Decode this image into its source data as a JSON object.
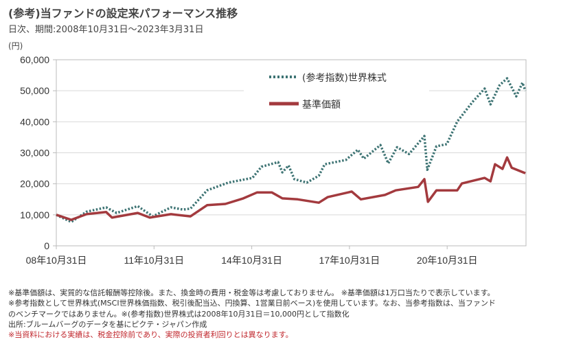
{
  "header": {
    "title": "(参考)当ファンドの設定来パフォーマンス推移",
    "subtitle": "日次、期間:2008年10月31日～2023年3月31日",
    "unit": "(円)"
  },
  "chart_data": {
    "type": "line",
    "title": "(参考)当ファンドの設定来パフォーマンス推移",
    "ylabel": "(円)",
    "ylim": [
      0,
      60000
    ],
    "xlim_years_since_start": [
      0,
      14.42
    ],
    "yticks": [
      0,
      10000,
      20000,
      30000,
      40000,
      50000,
      60000
    ],
    "ytick_labels": [
      "0",
      "10,000",
      "20,000",
      "30,000",
      "40,000",
      "50,000",
      "60,000"
    ],
    "xticks_years_since_start": [
      0,
      3,
      6,
      9,
      12
    ],
    "xtick_labels": [
      "08年10月31日",
      "11年10月31日",
      "14年10月31日",
      "17年10月31日",
      "20年10月31日"
    ],
    "grid": true,
    "legend": "top-center",
    "series": [
      {
        "name": "(参考指数)世界株式",
        "color": "#3d7373",
        "style": "dotted",
        "x": [
          0,
          0.09,
          0.46,
          0.93,
          1.53,
          1.85,
          2.5,
          2.96,
          3.52,
          3.89,
          4.12,
          4.63,
          5.28,
          6.02,
          6.3,
          6.81,
          6.94,
          7.13,
          7.31,
          7.69,
          8.06,
          8.24,
          8.89,
          9.26,
          9.44,
          9.95,
          10.19,
          10.46,
          10.83,
          11.3,
          11.39,
          11.67,
          11.99,
          12.31,
          12.78,
          13.15,
          13.33,
          13.61,
          13.84,
          14.12,
          14.31,
          14.4
        ],
        "y": [
          10000,
          9500,
          7700,
          11000,
          12400,
          10600,
          12800,
          9500,
          12400,
          11700,
          12000,
          17900,
          20400,
          21900,
          25500,
          27000,
          23700,
          25900,
          21500,
          20400,
          22600,
          26300,
          27700,
          31000,
          28100,
          32500,
          26600,
          31800,
          29600,
          35400,
          24500,
          32100,
          32800,
          40100,
          46400,
          50700,
          45600,
          51800,
          54000,
          48200,
          52600,
          50000
        ]
      },
      {
        "name": "基準価額",
        "color": "#a33a3e",
        "style": "solid",
        "x": [
          0,
          0.46,
          0.93,
          1.53,
          1.71,
          2.5,
          2.87,
          3.52,
          4.12,
          4.63,
          5.19,
          5.74,
          6.16,
          6.62,
          6.94,
          7.41,
          8.06,
          8.33,
          9.07,
          9.35,
          10.09,
          10.42,
          11.11,
          11.3,
          11.41,
          11.67,
          12.31,
          12.45,
          13.15,
          13.33,
          13.47,
          13.7,
          13.84,
          13.98,
          14.4
        ],
        "y": [
          10000,
          8400,
          10200,
          10900,
          9100,
          10600,
          9100,
          10200,
          9500,
          13100,
          13500,
          15300,
          17200,
          17200,
          15300,
          15000,
          13900,
          15700,
          17500,
          15000,
          16400,
          17900,
          19000,
          21500,
          14200,
          17900,
          17900,
          20100,
          21900,
          20800,
          26300,
          24800,
          28500,
          25200,
          23400
        ]
      }
    ]
  },
  "notes": [
    "※基準価額は、実質的な信託報酬等控除後。また、換金時の費用・税金等は考慮しておりません。 ※基準価額は1万口当たりで表示しています。",
    "※参考指数として世界株式(MSCI世界株価指数、税引後配当込、円換算、1営業日前ベース)を使用しています。なお、当参考指数は、当ファンド",
    "のベンチマークではありません。※(参考指数)世界株式は2008年10月31日＝10,000円として指数化",
    "出所:ブルームバーグのデータを基にピクテ・ジャパン作成"
  ],
  "disclaimer": "※当資料における実績は、税金控除前であり、実際の投資者利回りとは異なります。"
}
